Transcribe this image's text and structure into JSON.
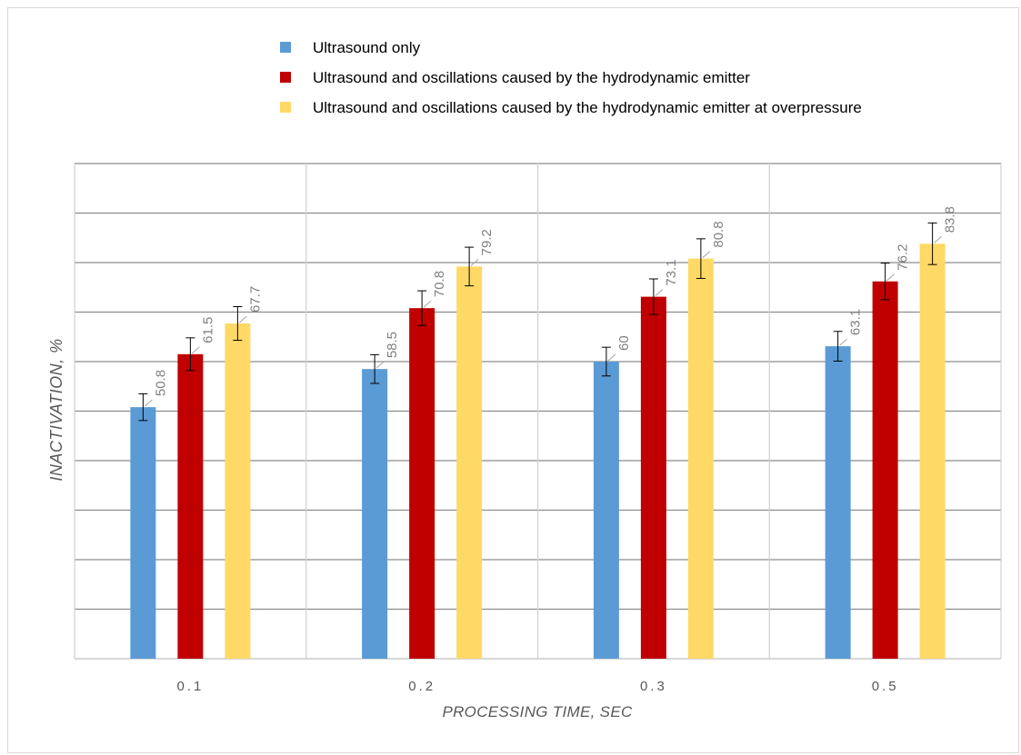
{
  "chart_data": {
    "type": "bar",
    "title": "",
    "xlabel": "PROCESSING TIME, SEC",
    "ylabel": "INACTIVATION, %",
    "categories": [
      "0.1",
      "0.2",
      "0.3",
      "0.5"
    ],
    "series": [
      {
        "name": "Ultrasound only",
        "color": "#5b9bd5",
        "values": [
          50.8,
          58.5,
          60,
          63.1
        ],
        "error": [
          2.7,
          2.9,
          2.9,
          3.0
        ]
      },
      {
        "name": "Ultrasound and oscillations caused by the hydrodynamic emitter",
        "color": "#c00000",
        "values": [
          61.5,
          70.8,
          73.1,
          76.2
        ],
        "error": [
          3.3,
          3.5,
          3.6,
          3.7
        ]
      },
      {
        "name": "Ultrasound and oscillations caused by the hydrodynamic emitter at overpressure",
        "color": "#ffd966",
        "values": [
          67.7,
          79.2,
          80.8,
          83.8
        ],
        "error": [
          3.4,
          3.9,
          4.0,
          4.2
        ]
      }
    ],
    "ylim": [
      0,
      100
    ],
    "ytick_step": 10,
    "grid": true,
    "legend_position": "top"
  }
}
